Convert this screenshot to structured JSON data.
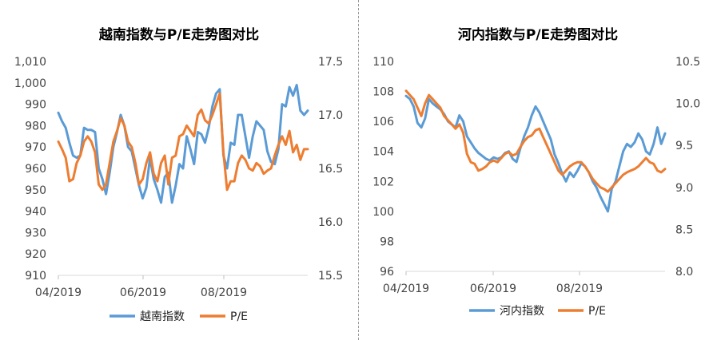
{
  "chart_data": [
    {
      "type": "line",
      "title": "越南指数与P/E走势图对比",
      "x_ticks": [
        "04/2019",
        "06/2019",
        "08/2019"
      ],
      "y_left": {
        "min": 910,
        "max": 1010,
        "step": 10,
        "labels": [
          "910",
          "920",
          "930",
          "940",
          "950",
          "960",
          "970",
          "980",
          "990",
          "1,000",
          "1,010"
        ]
      },
      "y_right": {
        "min": 15.5,
        "max": 17.5,
        "step": 0.5,
        "labels": [
          "15.5",
          "16.0",
          "16.5",
          "17.0",
          "17.5"
        ]
      },
      "legend": {
        "position": "bottom",
        "entries": [
          "越南指数",
          "P/E"
        ]
      },
      "grid": false,
      "series": [
        {
          "name": "越南指数",
          "axis": "left",
          "color": "#5b9bd5",
          "values": [
            986,
            982,
            979,
            972,
            966,
            965,
            966,
            979,
            978,
            978,
            977,
            960,
            955,
            948,
            958,
            970,
            977,
            985,
            980,
            970,
            968,
            960,
            952,
            946,
            951,
            965,
            955,
            950,
            944,
            956,
            958,
            944,
            952,
            962,
            960,
            975,
            969,
            962,
            977,
            976,
            972,
            979,
            989,
            995,
            997,
            966,
            960,
            972,
            971,
            985,
            985,
            975,
            965,
            975,
            982,
            980,
            978,
            968,
            963,
            962,
            969,
            990,
            989,
            998,
            994,
            999,
            987,
            985,
            987
          ]
        },
        {
          "name": "P/E",
          "axis": "right",
          "color": "#ed7d31",
          "values": [
            16.75,
            16.68,
            16.6,
            16.38,
            16.4,
            16.55,
            16.62,
            16.75,
            16.8,
            16.75,
            16.65,
            16.35,
            16.3,
            16.35,
            16.55,
            16.75,
            16.85,
            16.97,
            16.9,
            16.75,
            16.7,
            16.55,
            16.35,
            16.4,
            16.55,
            16.65,
            16.45,
            16.38,
            16.55,
            16.62,
            16.35,
            16.6,
            16.62,
            16.8,
            16.82,
            16.9,
            16.85,
            16.8,
            17.0,
            17.05,
            16.95,
            16.92,
            17.0,
            17.1,
            17.2,
            16.65,
            16.3,
            16.38,
            16.38,
            16.55,
            16.62,
            16.58,
            16.5,
            16.48,
            16.55,
            16.52,
            16.45,
            16.48,
            16.5,
            16.62,
            16.72,
            16.8,
            16.72,
            16.85,
            16.65,
            16.72,
            16.58,
            16.68,
            16.68
          ]
        }
      ]
    },
    {
      "type": "line",
      "title": "河内指数与P/E走势图对比",
      "x_ticks": [
        "04/2019",
        "06/2019",
        "08/2019"
      ],
      "y_left": {
        "min": 96,
        "max": 110,
        "step": 2,
        "labels": [
          "96",
          "98",
          "100",
          "102",
          "104",
          "106",
          "108",
          "110"
        ]
      },
      "y_right": {
        "min": 8.0,
        "max": 10.5,
        "step": 0.5,
        "labels": [
          "8.0",
          "8.5",
          "9.0",
          "9.5",
          "10.0",
          "10.5"
        ]
      },
      "legend": {
        "position": "bottom",
        "entries": [
          "河内指数",
          "P/E"
        ]
      },
      "grid": false,
      "series": [
        {
          "name": "河内指数",
          "axis": "left",
          "color": "#5b9bd5",
          "values": [
            107.7,
            107.5,
            107.0,
            105.9,
            105.6,
            106.2,
            107.5,
            107.2,
            107.0,
            106.8,
            106.5,
            106.0,
            105.8,
            105.6,
            106.4,
            106.0,
            105.0,
            104.6,
            104.2,
            103.9,
            103.7,
            103.5,
            103.4,
            103.6,
            103.5,
            103.6,
            103.9,
            104.0,
            103.5,
            103.3,
            104.2,
            105.0,
            105.6,
            106.4,
            107.0,
            106.6,
            106.0,
            105.4,
            104.8,
            103.8,
            103.2,
            102.5,
            102.0,
            102.6,
            102.3,
            102.7,
            103.2,
            103.0,
            102.6,
            102.0,
            101.6,
            101.0,
            100.5,
            100.0,
            101.5,
            102.0,
            103.0,
            104.0,
            104.5,
            104.3,
            104.6,
            105.2,
            104.8,
            104.0,
            103.8,
            104.5,
            105.6,
            104.5,
            105.2
          ]
        },
        {
          "name": "P/E",
          "axis": "right",
          "color": "#ed7d31",
          "values": [
            10.15,
            10.1,
            10.05,
            9.95,
            9.85,
            10.0,
            10.1,
            10.05,
            10.0,
            9.95,
            9.85,
            9.8,
            9.75,
            9.7,
            9.75,
            9.65,
            9.4,
            9.3,
            9.28,
            9.2,
            9.22,
            9.25,
            9.3,
            9.32,
            9.3,
            9.35,
            9.4,
            9.42,
            9.38,
            9.4,
            9.48,
            9.55,
            9.6,
            9.62,
            9.68,
            9.7,
            9.6,
            9.5,
            9.4,
            9.3,
            9.2,
            9.15,
            9.2,
            9.25,
            9.28,
            9.3,
            9.3,
            9.25,
            9.18,
            9.1,
            9.05,
            9.0,
            8.98,
            8.95,
            9.0,
            9.05,
            9.1,
            9.15,
            9.18,
            9.2,
            9.22,
            9.25,
            9.3,
            9.35,
            9.3,
            9.28,
            9.2,
            9.18,
            9.22
          ]
        }
      ]
    }
  ]
}
